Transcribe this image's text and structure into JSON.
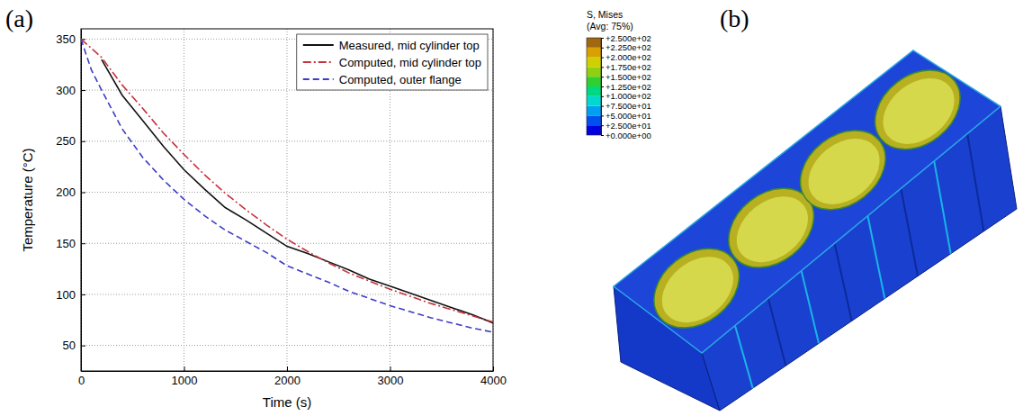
{
  "chart_data": [
    {
      "type": "line",
      "panel_label": "(a)",
      "x_label": "Time (s)",
      "y_label": "Temperature (°C)",
      "xlim": [
        0,
        4000
      ],
      "ylim": [
        25,
        360
      ],
      "xticks": [
        0,
        1000,
        2000,
        3000,
        4000
      ],
      "yticks": [
        50,
        100,
        150,
        200,
        250,
        300,
        350
      ],
      "grid": true,
      "legend": "upper right",
      "series": [
        {
          "name": "Measured, mid cylinder top",
          "color": "#111111",
          "line_style": "solid",
          "x": [
            200,
            400,
            600,
            800,
            1000,
            1200,
            1400,
            1600,
            1800,
            2000,
            2200,
            2400,
            2600,
            2800,
            3000,
            3200,
            3400,
            3600,
            3800,
            4000
          ],
          "values": [
            330,
            295,
            270,
            245,
            222,
            203,
            185,
            173,
            160,
            147,
            140,
            132,
            124,
            115,
            108,
            101,
            94,
            87,
            80,
            72
          ]
        },
        {
          "name": "Computed, mid cylinder top",
          "color": "#c8323c",
          "line_style": "dashdot",
          "x": [
            0,
            200,
            400,
            600,
            800,
            1000,
            1200,
            1400,
            1600,
            1800,
            2000,
            2200,
            2400,
            2600,
            2800,
            3000,
            3200,
            3400,
            3600,
            3800,
            4000
          ],
          "values": [
            350,
            332,
            305,
            282,
            258,
            237,
            217,
            199,
            183,
            168,
            154,
            142,
            131,
            121,
            113,
            105,
            98,
            91,
            85,
            79,
            73
          ]
        },
        {
          "name": "Computed, outer flange",
          "color": "#3c3cc8",
          "line_style": "dashed",
          "x": [
            0,
            100,
            200,
            400,
            600,
            800,
            1000,
            1200,
            1400,
            1600,
            1800,
            2000,
            2200,
            2400,
            2600,
            2800,
            3000,
            3200,
            3400,
            3600,
            3800,
            4000
          ],
          "values": [
            350,
            320,
            300,
            262,
            234,
            212,
            193,
            177,
            163,
            152,
            141,
            128,
            120,
            112,
            103,
            96,
            89,
            83,
            77,
            72,
            67,
            63
          ]
        }
      ]
    },
    {
      "type": "contour",
      "panel_label": "(b)",
      "title": "S, Mises",
      "subtitle": "(Avg: 75%)",
      "colorbar": {
        "range": [
          0,
          250
        ],
        "ticks": [
          {
            "value": 250,
            "label": "+2.500e+02"
          },
          {
            "value": 225,
            "label": "+2.250e+02"
          },
          {
            "value": 200,
            "label": "+2.000e+02"
          },
          {
            "value": 175,
            "label": "+1.750e+02"
          },
          {
            "value": 150,
            "label": "+1.500e+02"
          },
          {
            "value": 125,
            "label": "+1.250e+02"
          },
          {
            "value": 100,
            "label": "+1.000e+02"
          },
          {
            "value": 75,
            "label": "+7.500e+01"
          },
          {
            "value": 50,
            "label": "+5.000e+01"
          },
          {
            "value": 25,
            "label": "+2.500e+01"
          },
          {
            "value": 0,
            "label": "+0.000e+00"
          }
        ]
      }
    }
  ]
}
